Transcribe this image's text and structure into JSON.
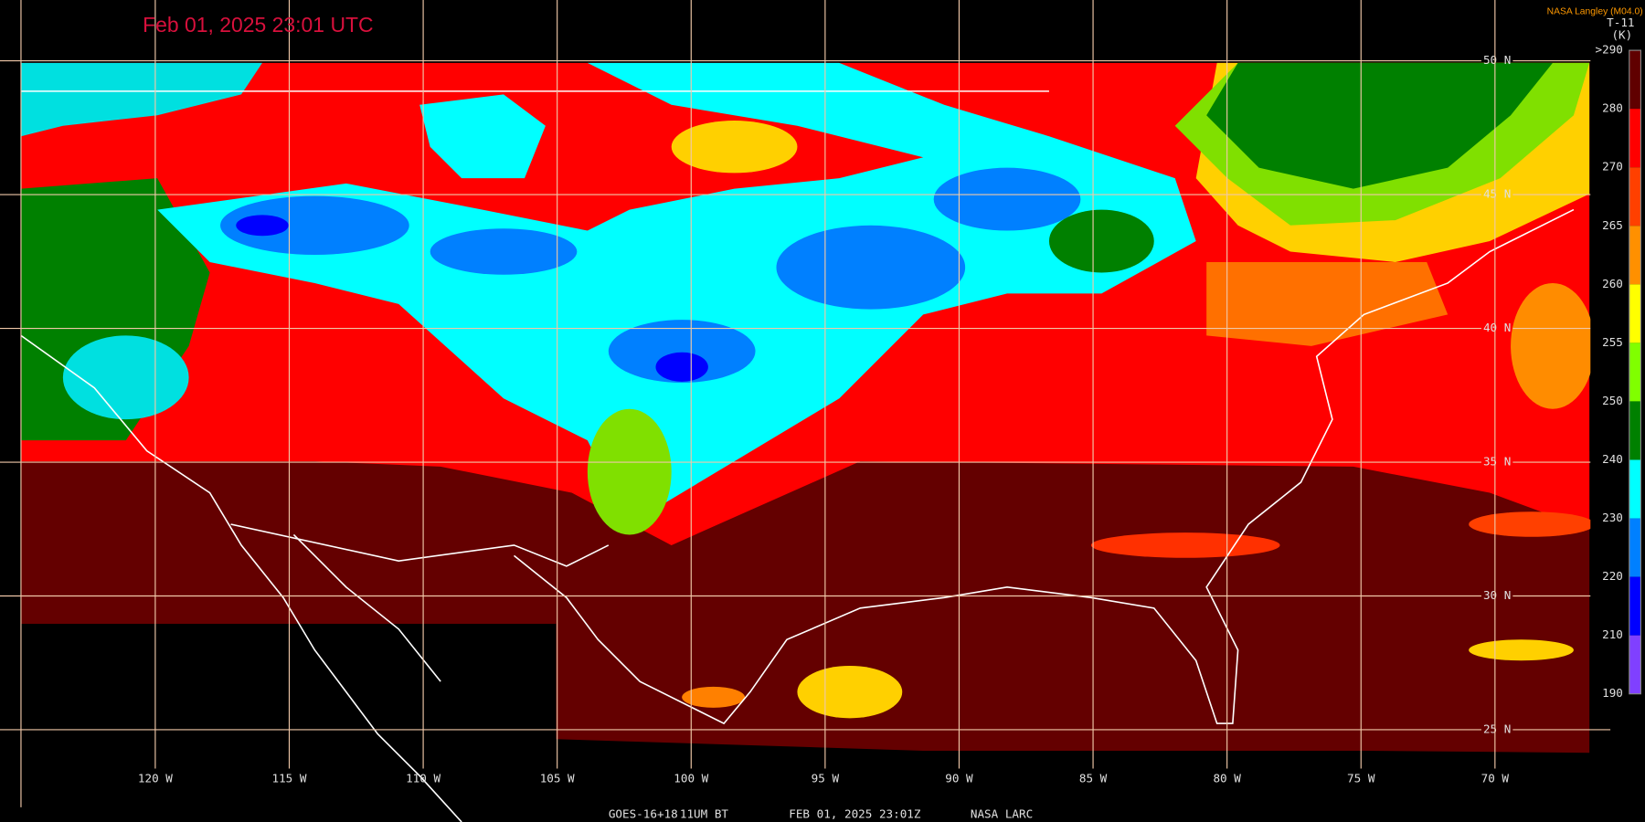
{
  "header": {
    "timestamp": "Feb 01, 2025 23:01 UTC",
    "credit": "NASA Langley (M04.0)"
  },
  "colorbar": {
    "title": "T-11",
    "unit": "(K)",
    "labels": [
      ">290",
      "280",
      "270",
      "265",
      "260",
      "255",
      "250",
      "240",
      "230",
      "220",
      "210",
      "190"
    ]
  },
  "latitude_labels": [
    "50 N",
    "45 N",
    "40 N",
    "35 N",
    "30 N",
    "25 N"
  ],
  "longitude_labels": [
    "120 W",
    "115 W",
    "110 W",
    "105 W",
    "100 W",
    "95 W",
    "90 W",
    "85 W",
    "80 W",
    "75 W",
    "70 W"
  ],
  "footer": {
    "satellite": "GOES-16+18",
    "product": "11UM BT",
    "time": "FEB 01, 2025 23:01Z",
    "source": "NASA LARC"
  }
}
